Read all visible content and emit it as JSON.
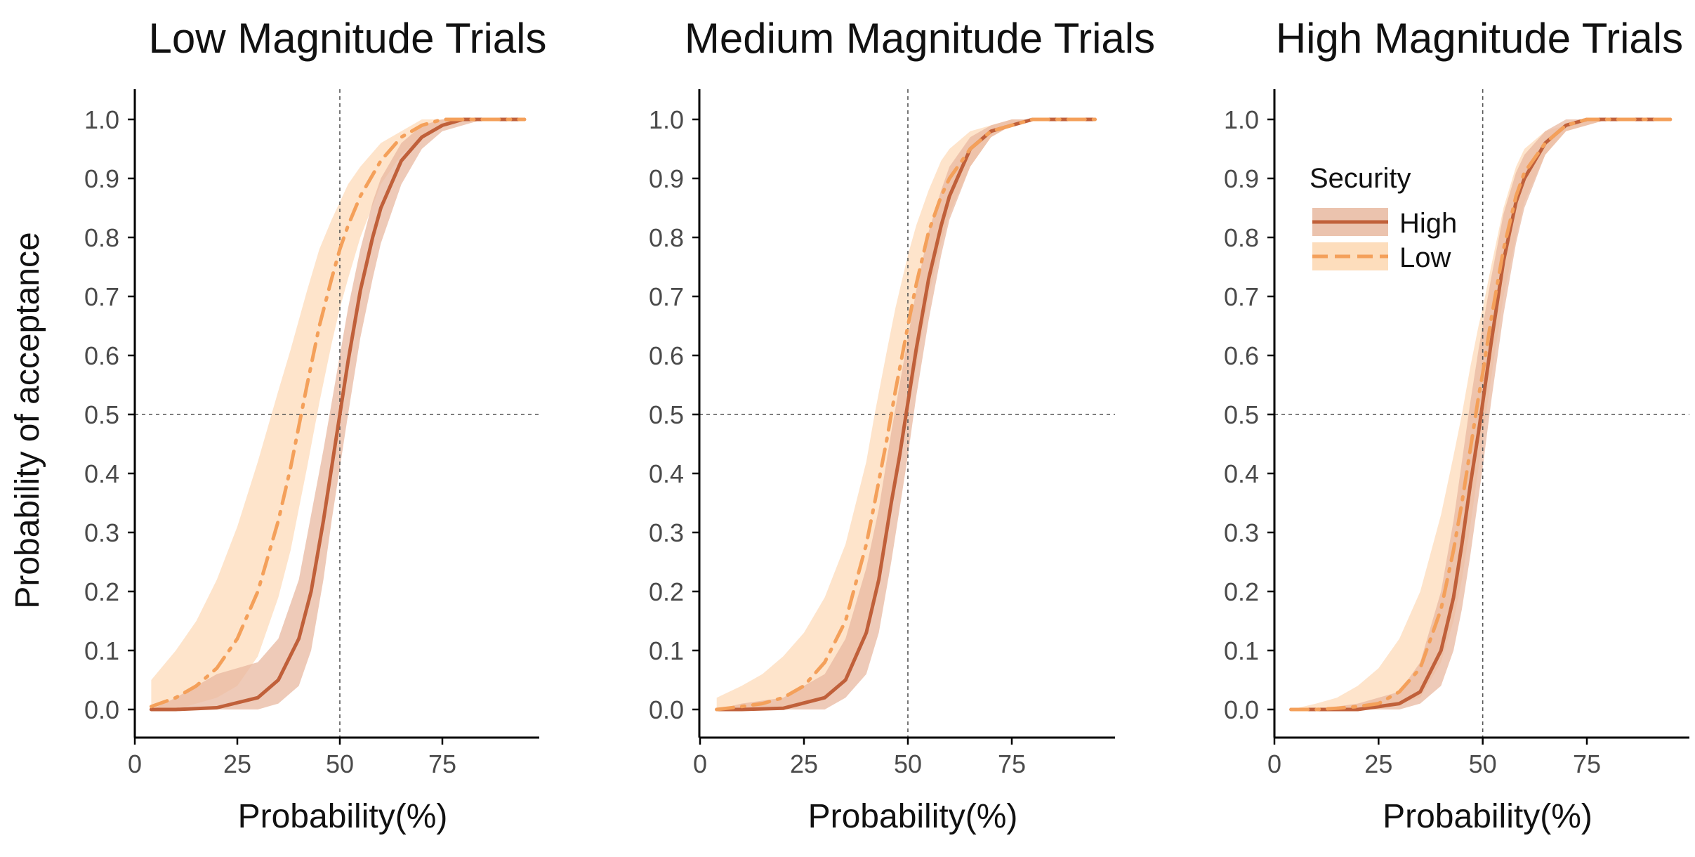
{
  "legend": {
    "title": "Security",
    "entries": [
      {
        "label": "High",
        "line_color": "#C0603A",
        "band_color": "#E8B8A0"
      },
      {
        "label": "Low",
        "line_color": "#F4A05A",
        "band_color": "#FDD9B5"
      }
    ]
  },
  "colors": {
    "high_line": "#C0603A",
    "high_band": "#E8B8A0",
    "low_line": "#F4A05A",
    "low_band": "#FDD9B5",
    "reference_line": "#555555",
    "axis": "#000000"
  },
  "chart_data": [
    {
      "type": "line",
      "title": "Low Magnitude Trials",
      "xlabel": "Probability(%)",
      "ylabel": "Probability of acceptance",
      "xlim": [
        0,
        97
      ],
      "ylim": [
        -0.05,
        1.05
      ],
      "xticks": [
        "0",
        "25",
        "50",
        "75"
      ],
      "yticks": [
        "0.0",
        "0.1",
        "0.2",
        "0.3",
        "0.4",
        "0.5",
        "0.6",
        "0.7",
        "0.8",
        "0.9",
        "1.0"
      ],
      "reference_lines": {
        "x": 50,
        "y": 0.5
      },
      "grid": false,
      "series": [
        {
          "name": "High",
          "style": "solid",
          "x": [
            4,
            10,
            20,
            30,
            35,
            40,
            43,
            46,
            48,
            50,
            52,
            55,
            58,
            60,
            65,
            70,
            75,
            80,
            85,
            90,
            95
          ],
          "y": [
            0.0,
            0.0,
            0.003,
            0.02,
            0.05,
            0.12,
            0.2,
            0.32,
            0.41,
            0.5,
            0.59,
            0.71,
            0.8,
            0.85,
            0.93,
            0.97,
            0.99,
            1.0,
            1.0,
            1.0,
            1.0
          ],
          "lower": [
            0.0,
            0.0,
            0.0,
            0.0,
            0.01,
            0.04,
            0.1,
            0.22,
            0.32,
            0.41,
            0.5,
            0.63,
            0.73,
            0.79,
            0.89,
            0.95,
            0.98,
            0.99,
            1.0,
            1.0,
            1.0
          ],
          "upper": [
            0.0,
            0.02,
            0.06,
            0.08,
            0.12,
            0.22,
            0.33,
            0.44,
            0.52,
            0.6,
            0.68,
            0.78,
            0.86,
            0.9,
            0.96,
            0.99,
            1.0,
            1.0,
            1.0,
            1.0,
            1.0
          ]
        },
        {
          "name": "Low",
          "style": "dashdot",
          "x": [
            4,
            10,
            15,
            20,
            25,
            30,
            35,
            38,
            40,
            42,
            45,
            48,
            50,
            52,
            55,
            60,
            65,
            70,
            75,
            80,
            85,
            90,
            95
          ],
          "y": [
            0.005,
            0.02,
            0.04,
            0.07,
            0.12,
            0.2,
            0.32,
            0.41,
            0.48,
            0.55,
            0.65,
            0.73,
            0.78,
            0.82,
            0.87,
            0.93,
            0.97,
            0.99,
            1.0,
            1.0,
            1.0,
            1.0,
            1.0
          ],
          "lower": [
            0.0,
            0.0,
            0.01,
            0.02,
            0.04,
            0.09,
            0.19,
            0.27,
            0.34,
            0.41,
            0.52,
            0.62,
            0.68,
            0.73,
            0.8,
            0.89,
            0.94,
            0.97,
            0.99,
            1.0,
            1.0,
            1.0,
            1.0
          ],
          "upper": [
            0.05,
            0.1,
            0.15,
            0.22,
            0.31,
            0.42,
            0.54,
            0.61,
            0.66,
            0.71,
            0.78,
            0.83,
            0.86,
            0.89,
            0.92,
            0.96,
            0.98,
            1.0,
            1.0,
            1.0,
            1.0,
            1.0,
            1.0
          ]
        }
      ]
    },
    {
      "type": "line",
      "title": "Medium Magnitude Trials",
      "xlabel": "Probability(%)",
      "ylabel": "",
      "xlim": [
        0,
        97
      ],
      "ylim": [
        -0.05,
        1.05
      ],
      "xticks": [
        "0",
        "25",
        "50",
        "75"
      ],
      "yticks": [
        "0.0",
        "0.1",
        "0.2",
        "0.3",
        "0.4",
        "0.5",
        "0.6",
        "0.7",
        "0.8",
        "0.9",
        "1.0"
      ],
      "reference_lines": {
        "x": 50,
        "y": 0.5
      },
      "grid": false,
      "series": [
        {
          "name": "High",
          "style": "solid",
          "x": [
            4,
            10,
            20,
            30,
            35,
            40,
            43,
            46,
            48,
            50,
            52,
            55,
            58,
            60,
            65,
            70,
            75,
            80,
            85,
            90,
            95
          ],
          "y": [
            0.0,
            0.0,
            0.002,
            0.02,
            0.05,
            0.13,
            0.22,
            0.35,
            0.43,
            0.52,
            0.61,
            0.73,
            0.82,
            0.87,
            0.95,
            0.98,
            0.99,
            1.0,
            1.0,
            1.0,
            1.0
          ],
          "lower": [
            0.0,
            0.0,
            0.0,
            0.0,
            0.02,
            0.06,
            0.13,
            0.25,
            0.34,
            0.43,
            0.53,
            0.66,
            0.77,
            0.83,
            0.92,
            0.97,
            0.99,
            1.0,
            1.0,
            1.0,
            1.0
          ],
          "upper": [
            0.0,
            0.01,
            0.02,
            0.06,
            0.12,
            0.24,
            0.34,
            0.47,
            0.55,
            0.63,
            0.71,
            0.81,
            0.88,
            0.92,
            0.97,
            0.99,
            1.0,
            1.0,
            1.0,
            1.0,
            1.0
          ]
        },
        {
          "name": "Low",
          "style": "dashdot",
          "x": [
            4,
            10,
            15,
            20,
            25,
            30,
            35,
            40,
            42,
            45,
            47,
            50,
            52,
            55,
            58,
            60,
            65,
            70,
            75,
            80,
            85,
            90,
            95
          ],
          "y": [
            0.0,
            0.005,
            0.01,
            0.02,
            0.04,
            0.08,
            0.15,
            0.28,
            0.35,
            0.46,
            0.54,
            0.65,
            0.72,
            0.81,
            0.87,
            0.9,
            0.95,
            0.98,
            0.99,
            1.0,
            1.0,
            1.0,
            1.0
          ],
          "lower": [
            0.0,
            0.0,
            0.0,
            0.0,
            0.01,
            0.02,
            0.05,
            0.13,
            0.19,
            0.3,
            0.38,
            0.5,
            0.58,
            0.7,
            0.79,
            0.84,
            0.92,
            0.97,
            0.99,
            1.0,
            1.0,
            1.0,
            1.0
          ],
          "upper": [
            0.02,
            0.04,
            0.06,
            0.09,
            0.13,
            0.19,
            0.28,
            0.42,
            0.5,
            0.61,
            0.68,
            0.77,
            0.82,
            0.88,
            0.93,
            0.95,
            0.98,
            0.99,
            1.0,
            1.0,
            1.0,
            1.0,
            1.0
          ]
        }
      ]
    },
    {
      "type": "line",
      "title": "High Magnitude Trials",
      "xlabel": "Probability(%)",
      "ylabel": "",
      "xlim": [
        0,
        97
      ],
      "ylim": [
        -0.05,
        1.05
      ],
      "xticks": [
        "0",
        "25",
        "50",
        "75"
      ],
      "yticks": [
        "0.0",
        "0.1",
        "0.2",
        "0.3",
        "0.4",
        "0.5",
        "0.6",
        "0.7",
        "0.8",
        "0.9",
        "1.0"
      ],
      "reference_lines": {
        "x": 50,
        "y": 0.5
      },
      "grid": false,
      "legend": "top-left",
      "series": [
        {
          "name": "High",
          "style": "solid",
          "x": [
            4,
            10,
            20,
            30,
            35,
            40,
            43,
            45,
            47,
            49,
            50,
            52,
            55,
            58,
            60,
            65,
            70,
            75,
            80,
            85,
            90,
            95
          ],
          "y": [
            0.0,
            0.0,
            0.0,
            0.01,
            0.03,
            0.1,
            0.19,
            0.28,
            0.38,
            0.47,
            0.52,
            0.62,
            0.76,
            0.86,
            0.9,
            0.96,
            0.99,
            1.0,
            1.0,
            1.0,
            1.0,
            1.0
          ],
          "lower": [
            0.0,
            0.0,
            0.0,
            0.0,
            0.01,
            0.04,
            0.1,
            0.17,
            0.26,
            0.36,
            0.41,
            0.52,
            0.67,
            0.79,
            0.85,
            0.94,
            0.98,
            0.99,
            1.0,
            1.0,
            1.0,
            1.0
          ],
          "upper": [
            0.0,
            0.0,
            0.01,
            0.03,
            0.08,
            0.2,
            0.32,
            0.42,
            0.52,
            0.61,
            0.65,
            0.73,
            0.84,
            0.91,
            0.94,
            0.98,
            1.0,
            1.0,
            1.0,
            1.0,
            1.0,
            1.0
          ]
        },
        {
          "name": "Low",
          "style": "dashdot",
          "x": [
            4,
            10,
            15,
            20,
            25,
            30,
            35,
            40,
            43,
            45,
            47,
            49,
            50,
            52,
            55,
            58,
            60,
            65,
            70,
            75,
            80,
            85,
            90,
            95
          ],
          "y": [
            0.0,
            0.0,
            0.002,
            0.005,
            0.01,
            0.03,
            0.07,
            0.17,
            0.27,
            0.35,
            0.44,
            0.53,
            0.57,
            0.66,
            0.78,
            0.87,
            0.91,
            0.96,
            0.99,
            1.0,
            1.0,
            1.0,
            1.0,
            1.0
          ],
          "lower": [
            0.0,
            0.0,
            0.0,
            0.0,
            0.0,
            0.01,
            0.02,
            0.08,
            0.15,
            0.22,
            0.31,
            0.41,
            0.46,
            0.56,
            0.7,
            0.8,
            0.86,
            0.94,
            0.98,
            0.99,
            1.0,
            1.0,
            1.0,
            1.0
          ],
          "upper": [
            0.0,
            0.01,
            0.02,
            0.04,
            0.07,
            0.12,
            0.2,
            0.33,
            0.43,
            0.5,
            0.58,
            0.65,
            0.68,
            0.75,
            0.85,
            0.92,
            0.95,
            0.98,
            0.99,
            1.0,
            1.0,
            1.0,
            1.0,
            1.0
          ]
        }
      ]
    }
  ]
}
